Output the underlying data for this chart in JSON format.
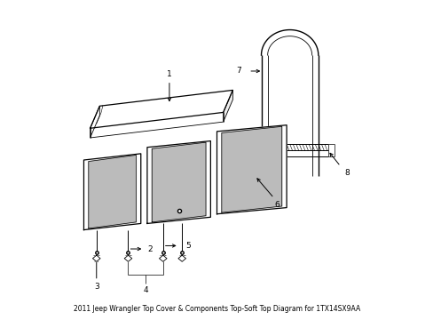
{
  "background_color": "#ffffff",
  "line_color": "#000000",
  "title": "2011 Jeep Wrangler Top Cover & Components Top-Soft Top Diagram for 1TX14SX9AA",
  "figsize": [
    4.89,
    3.6
  ],
  "dpi": 100
}
